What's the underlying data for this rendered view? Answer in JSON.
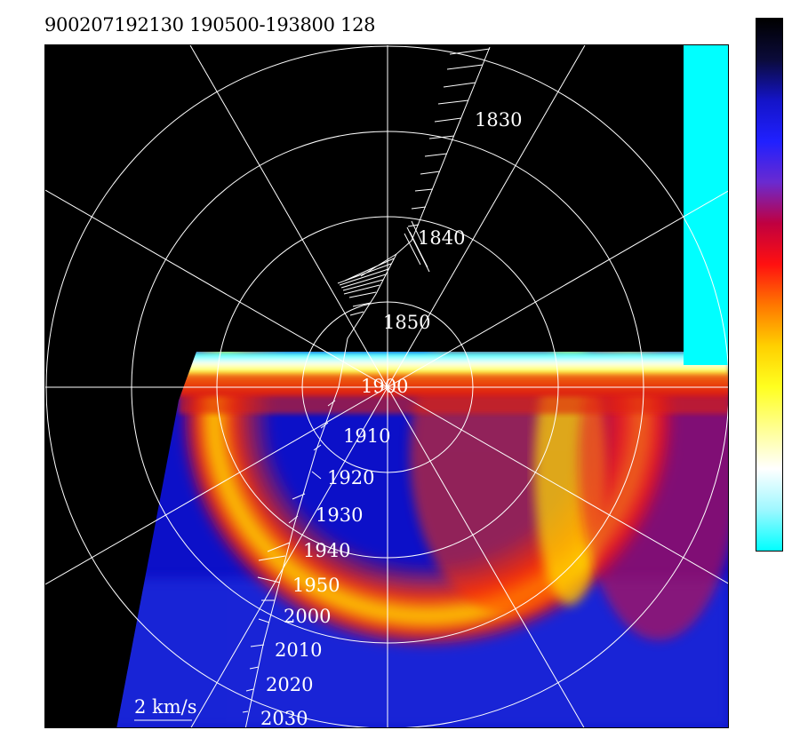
{
  "header": {
    "title": "900207192130 190500-193800 128"
  },
  "chart_data": {
    "type": "heatmap",
    "title": "900207192130 190500-193800 128",
    "projection": "polar",
    "rings": 4,
    "spokes": 12,
    "colorbar_stops": [
      "#000000",
      "#0b0b3a",
      "#1414c8",
      "#2020ff",
      "#6a2ad0",
      "#c00040",
      "#ff1010",
      "#ff7700",
      "#ffd000",
      "#ffff20",
      "#ffff90",
      "#ffffff",
      "#9ff7ff",
      "#00ffff"
    ],
    "scale_label": "2 km/s",
    "time_labels": [
      "1830",
      "1840",
      "1850",
      "1900",
      "1910",
      "1920",
      "1930",
      "1940",
      "1950",
      "2000",
      "2010",
      "2020",
      "2030"
    ]
  }
}
